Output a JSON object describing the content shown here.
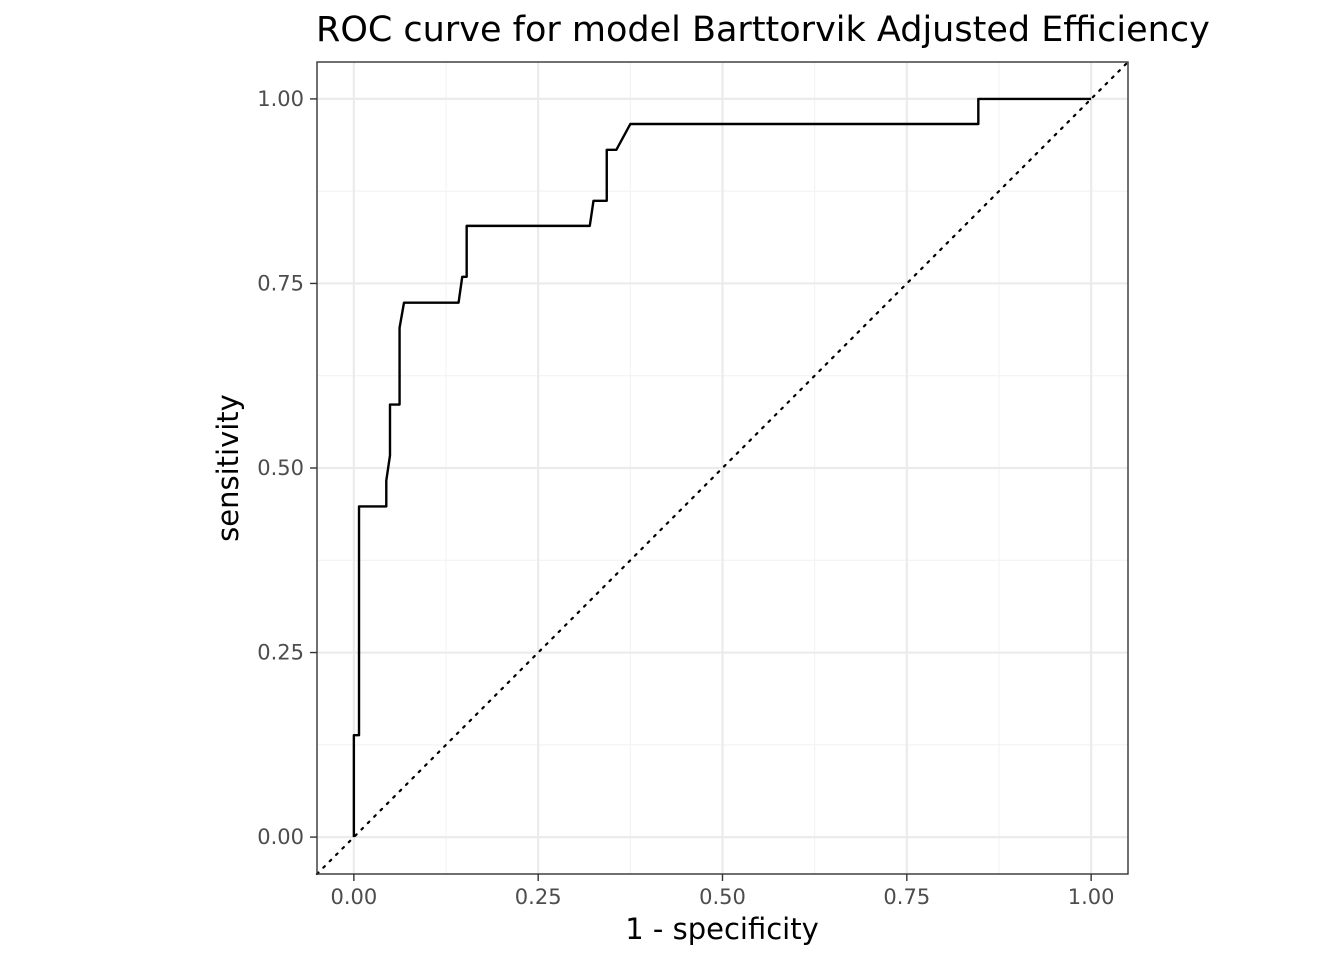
{
  "chart_data": {
    "type": "line",
    "title": "ROC curve for model Barttorvik Adjusted Efficiency",
    "xlabel": "1 - specificity",
    "ylabel": "sensitivity",
    "xlim": [
      -0.05,
      1.05
    ],
    "ylim": [
      -0.05,
      1.05
    ],
    "x_ticks": [
      0,
      0.25,
      0.5,
      0.75,
      1
    ],
    "x_tick_labels": [
      "0.00",
      "0.25",
      "0.50",
      "0.75",
      "1.00"
    ],
    "y_ticks": [
      0,
      0.25,
      0.5,
      0.75,
      1
    ],
    "y_tick_labels": [
      "0.00",
      "0.25",
      "0.50",
      "0.75",
      "1.00"
    ],
    "grid": true,
    "reference_line": {
      "x": [
        0,
        1
      ],
      "y": [
        0,
        1
      ],
      "style": "dotted"
    },
    "series": [
      {
        "x": [
          0,
          0,
          0.007,
          0.007,
          0.044,
          0.044,
          0.049,
          0.049,
          0.062,
          0.062,
          0.068,
          0.142,
          0.147,
          0.153,
          0.153,
          0.32,
          0.325,
          0.343,
          0.343,
          0.356,
          0.375,
          0.847,
          0.847,
          1.0
        ],
        "y": [
          0,
          0.138,
          0.138,
          0.448,
          0.448,
          0.483,
          0.517,
          0.586,
          0.586,
          0.69,
          0.724,
          0.724,
          0.759,
          0.759,
          0.828,
          0.828,
          0.862,
          0.862,
          0.931,
          0.931,
          0.966,
          0.966,
          1.0,
          1.0
        ]
      }
    ]
  }
}
